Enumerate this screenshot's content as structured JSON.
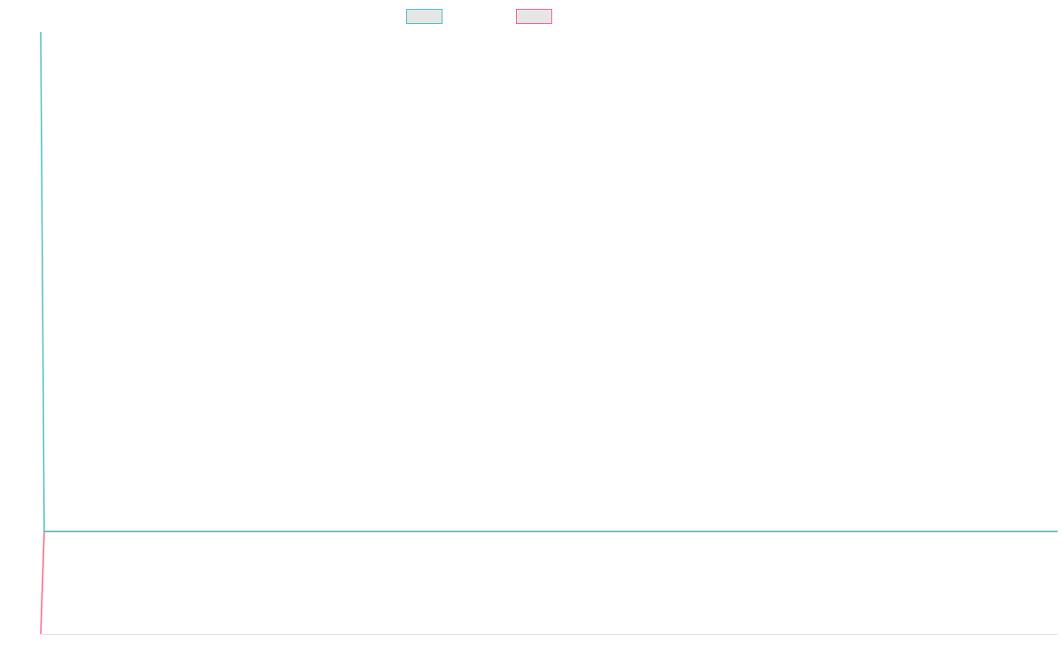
{
  "chart_data": {
    "type": "line",
    "x": [
      0,
      1,
      288
    ],
    "xlim": [
      0,
      288
    ],
    "ylim": [
      0,
      100
    ],
    "legend": "top",
    "legend_fill": "#e6e6e6",
    "axis_color": "#e0e0e0",
    "series": [
      {
        "color": "#4bc0c0",
        "values": [
          100,
          17,
          17
        ]
      },
      {
        "color": "#ff6384",
        "values": [
          0,
          17,
          17
        ]
      }
    ]
  }
}
